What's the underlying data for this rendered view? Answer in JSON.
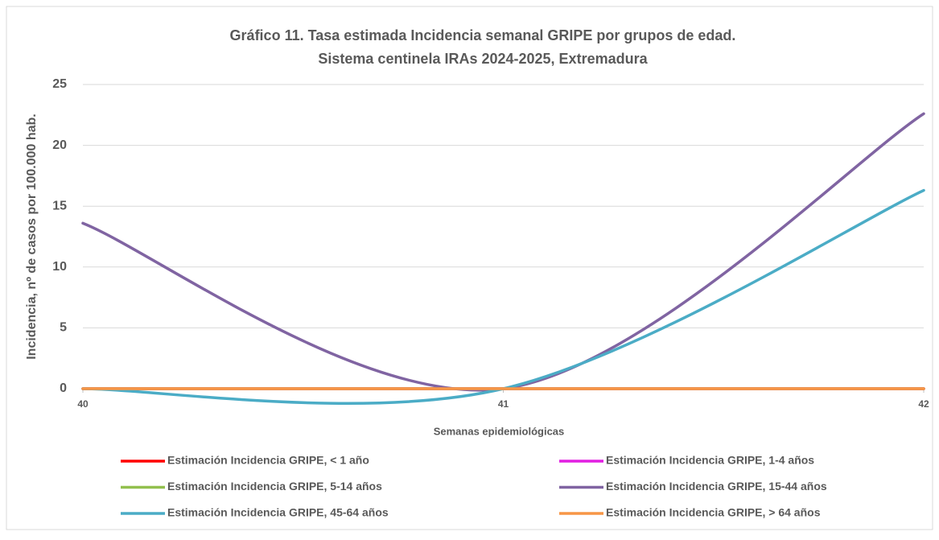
{
  "chart_data": {
    "type": "line",
    "title": "Gráfico 11. Tasa estimada Incidencia semanal GRIPE por grupos de edad.",
    "subtitle": "Sistema centinela IRAs 2024-2025, Extremadura",
    "x_label": "Semanas epidemiológicas",
    "y_label": "Incidencia, nº de casos por 100.000 hab.",
    "x": [
      40,
      41,
      42
    ],
    "xlim": [
      40,
      42
    ],
    "xticks": [
      40,
      41,
      42
    ],
    "ylim": [
      0,
      25
    ],
    "yticks": [
      0,
      5,
      10,
      15,
      20,
      25
    ],
    "grid": true,
    "smooth": true,
    "legend": "bottom",
    "series": [
      {
        "name": "Estimación Incidencia GRIPE, < 1 año",
        "color": "#ff0000",
        "values": [
          0,
          0,
          0
        ]
      },
      {
        "name": "Estimación Incidencia GRIPE, 1-4 años",
        "color": "#e21ee2",
        "values": [
          0,
          0,
          0
        ]
      },
      {
        "name": "Estimación Incidencia GRIPE, 5-14 años",
        "color": "#92c04e",
        "values": [
          0,
          0,
          0
        ]
      },
      {
        "name": "Estimación Incidencia GRIPE, 15-44 años",
        "color": "#8064a2",
        "values": [
          13.6,
          0,
          22.6
        ]
      },
      {
        "name": "Estimación Incidencia GRIPE, 45-64 años",
        "color": "#4bacc6",
        "values": [
          0,
          0,
          16.3
        ]
      },
      {
        "name": "Estimación Incidencia GRIPE, > 64 años",
        "color": "#f79646",
        "values": [
          0,
          0,
          0
        ]
      }
    ]
  }
}
